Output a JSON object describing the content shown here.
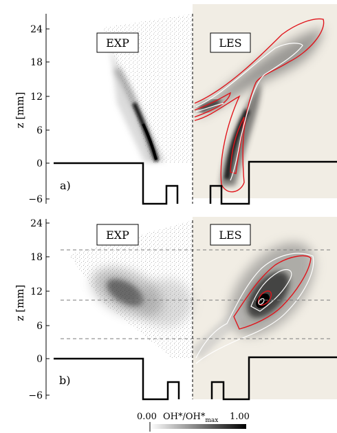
{
  "figure": {
    "panels": [
      {
        "label": "a)",
        "left_label": "EXP",
        "right_label": "LES",
        "ylabel": "z [mm]",
        "yticks": [
          "24",
          "18",
          "12",
          "6",
          "0",
          "−6"
        ]
      },
      {
        "label": "b)",
        "left_label": "EXP",
        "right_label": "LES",
        "ylabel": "z [mm]",
        "yticks": [
          "24",
          "18",
          "12",
          "6",
          "0",
          "−6"
        ]
      }
    ],
    "colorbar": {
      "min_label": "0.00",
      "max_label": "1.00",
      "title_main": "OH*/OH*",
      "title_sub": "max"
    },
    "colors": {
      "les_background": "#f1ede4",
      "contour_red": "#e0141b",
      "contour_white": "#ffffff",
      "dashed_line": "#7a7a7a"
    }
  }
}
